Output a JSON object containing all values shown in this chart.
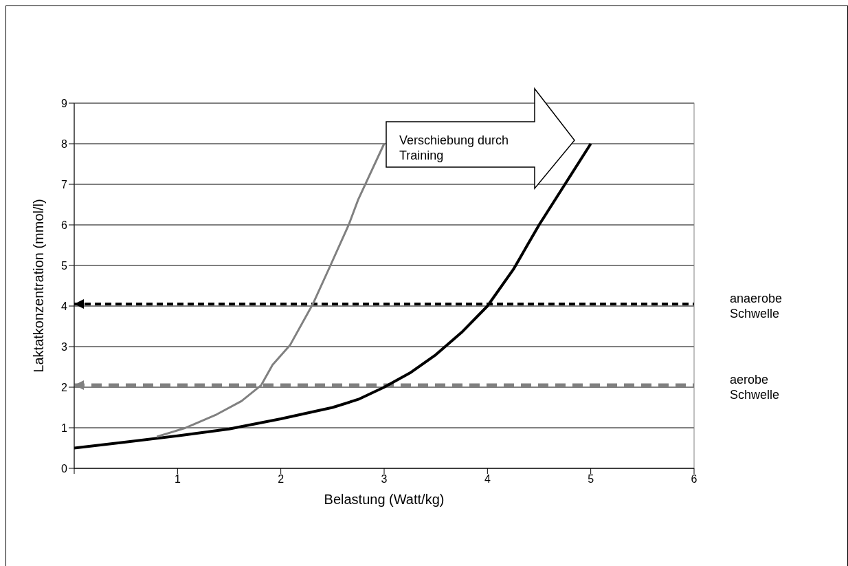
{
  "chart_data": {
    "type": "line",
    "xlabel": "Belastung (Watt/kg)",
    "ylabel": "Laktatkonzentration (mmol/l)",
    "xlim": [
      0,
      6
    ],
    "xticks": [
      {
        "value": 0,
        "label": null
      },
      1,
      2,
      3,
      4,
      5,
      6
    ],
    "ylim": [
      0,
      9
    ],
    "yticks": [
      0,
      1,
      2,
      3,
      4,
      5,
      6,
      7,
      8,
      9
    ],
    "grid": "y",
    "marker": "none",
    "line_style": "solid",
    "series": [
      {
        "color": "#000000",
        "x": [
          0,
          0.5,
          1,
          1.5,
          2,
          2.5,
          2.75,
          3,
          3.25,
          3.5,
          3.75,
          4,
          4.25,
          4.5,
          4.75,
          5
        ],
        "values": [
          0.5,
          0.65,
          0.8,
          0.97,
          1.22,
          1.5,
          1.7,
          2,
          2.35,
          2.8,
          3.35,
          4,
          4.9,
          6,
          7,
          8
        ]
      },
      {
        "color": "#808080",
        "x": [
          0.8,
          1.07,
          1.38,
          1.62,
          1.81,
          1.92,
          2.09,
          2.31,
          2.48,
          2.66,
          2.75,
          3
        ],
        "values": [
          0.78,
          0.99,
          1.33,
          1.66,
          2.05,
          2.55,
          3.04,
          4.05,
          5,
          6.02,
          6.63,
          8
        ]
      }
    ],
    "ref_lines": [
      {
        "axis": "y",
        "value": 4.05,
        "label": "anaerobe Schwelle",
        "color": "#000000",
        "line_style": "dashed"
      },
      {
        "axis": "y",
        "value": 2.05,
        "label": "aerobe Schwelle",
        "color": "#808080",
        "line_style": "dashed"
      }
    ],
    "annotations": [
      "Verschiebung durch Training"
    ]
  }
}
